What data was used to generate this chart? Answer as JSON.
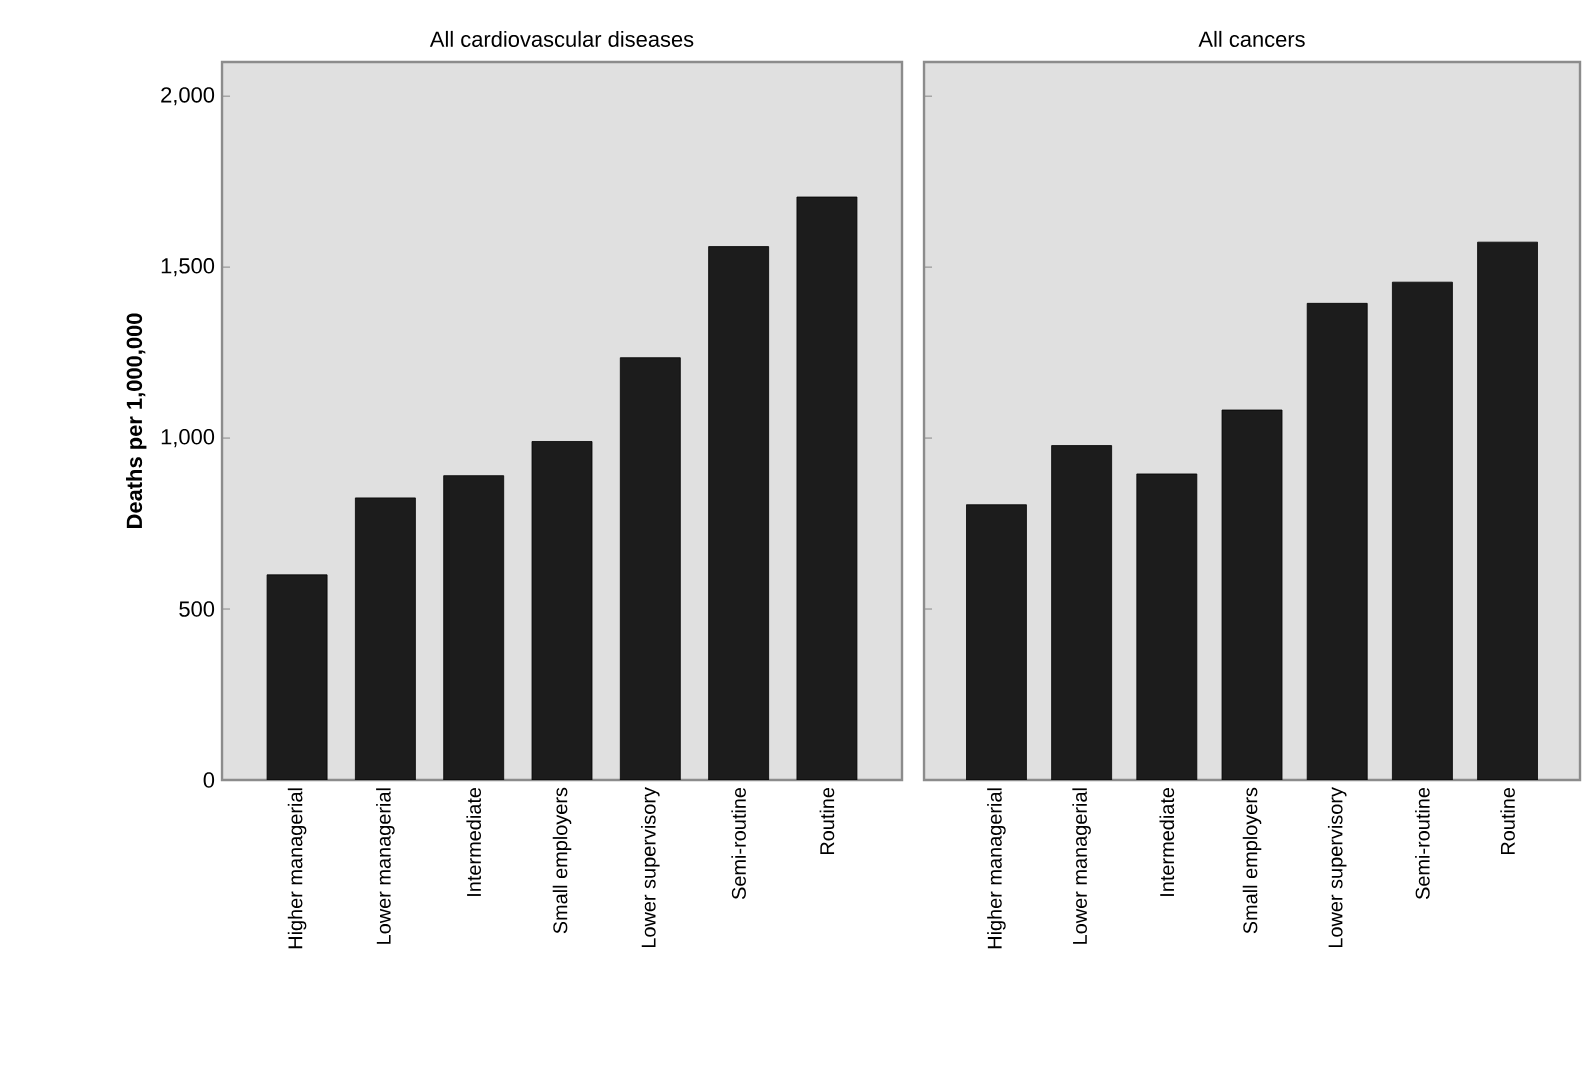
{
  "chart_data": [
    {
      "type": "bar",
      "title": "All cardiovascular diseases",
      "ylabel": "Deaths per 1,000,000",
      "categories": [
        "Higher managerial",
        "Lower managerial",
        "Intermediate",
        "Small employers",
        "Lower supervisory",
        "Semi-routine",
        "Routine"
      ],
      "values": [
        600,
        825,
        890,
        990,
        1235,
        1560,
        1705
      ],
      "color": "#1c1c1c",
      "ylim": [
        0,
        2100
      ],
      "yticks": [
        {
          "value": 0,
          "label": "0"
        },
        {
          "value": 500,
          "label": "500"
        },
        {
          "value": 1000,
          "label": "1,000"
        },
        {
          "value": 1500,
          "label": "1,500"
        },
        {
          "value": 2000,
          "label": "2,000"
        }
      ]
    },
    {
      "type": "bar",
      "title": "All cancers",
      "categories": [
        "Higher managerial",
        "Lower managerial",
        "Intermediate",
        "Small employers",
        "Lower supervisory",
        "Semi-routine",
        "Routine"
      ],
      "values": [
        805,
        978,
        895,
        1082,
        1394,
        1456,
        1573
      ],
      "color": "#1c1c1c",
      "ylim": [
        0,
        2100
      ],
      "yticks": [
        {
          "value": 0,
          "label": null
        },
        {
          "value": 500,
          "label": null
        },
        {
          "value": 1000,
          "label": null
        },
        {
          "value": 1500,
          "label": null
        },
        {
          "value": 2000,
          "label": null
        }
      ],
      "tick_labels": "x"
    }
  ]
}
